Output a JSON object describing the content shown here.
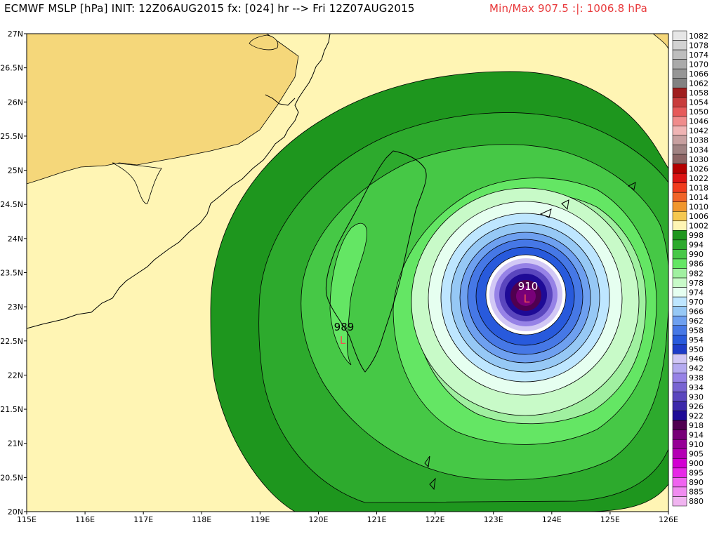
{
  "header": {
    "title": "ECMWF MSLP [hPa] INIT: 12Z06AUG2015 fx: [024] hr --> Fri 12Z07AUG2015",
    "minmax": "Min/Max 907.5 :|: 1006.8 hPa"
  },
  "map": {
    "lon_labels": [
      "115E",
      "116E",
      "117E",
      "118E",
      "119E",
      "120E",
      "121E",
      "122E",
      "123E",
      "124E",
      "125E",
      "126E"
    ],
    "lat_labels": [
      "27N",
      "26.5N",
      "26N",
      "25.5N",
      "25N",
      "24.5N",
      "24N",
      "23.5N",
      "23N",
      "22.5N",
      "22N",
      "21.5N",
      "21N",
      "20.5N",
      "20N"
    ],
    "lows": [
      {
        "value": "910",
        "symbol": "L"
      },
      {
        "value": "989",
        "symbol": "L"
      }
    ]
  },
  "colorbar": {
    "levels": [
      "1082",
      "1078",
      "1074",
      "1070",
      "1066",
      "1062",
      "1058",
      "1054",
      "1050",
      "1046",
      "1042",
      "1038",
      "1034",
      "1030",
      "1026",
      "1022",
      "1018",
      "1014",
      "1010",
      "1006",
      "1002",
      "998",
      "994",
      "990",
      "986",
      "982",
      "978",
      "974",
      "970",
      "966",
      "962",
      "958",
      "954",
      "950",
      "946",
      "942",
      "938",
      "934",
      "930",
      "926",
      "922",
      "918",
      "914",
      "910",
      "905",
      "900",
      "895",
      "890",
      "885",
      "880"
    ],
    "colors": [
      "#e6e6e6",
      "#d2d2d2",
      "#bebebe",
      "#aaaaaa",
      "#969696",
      "#828282",
      "#a01e1e",
      "#c83c3c",
      "#e65a5a",
      "#f08c8c",
      "#f0b4b4",
      "#c8a0a0",
      "#a08282",
      "#8c6464",
      "#b40000",
      "#dc1414",
      "#f03c1e",
      "#f06428",
      "#f0962d",
      "#f5c850",
      "#fff5b4",
      "#1e961e",
      "#2daa2d",
      "#46c846",
      "#64e664",
      "#a0f0a0",
      "#c8fac8",
      "#e6fff0",
      "#bee6ff",
      "#96c8f5",
      "#6ea0f0",
      "#4678e6",
      "#285adc",
      "#1e3cc8",
      "#d2c8f5",
      "#b4aaf0",
      "#9682e6",
      "#7864d2",
      "#5a46be",
      "#3c28aa",
      "#1e0a96",
      "#500050",
      "#780078",
      "#960096",
      "#b400b4",
      "#d200d2",
      "#e628e6",
      "#f064f0",
      "#f08cf0",
      "#f0b4f0"
    ]
  }
}
